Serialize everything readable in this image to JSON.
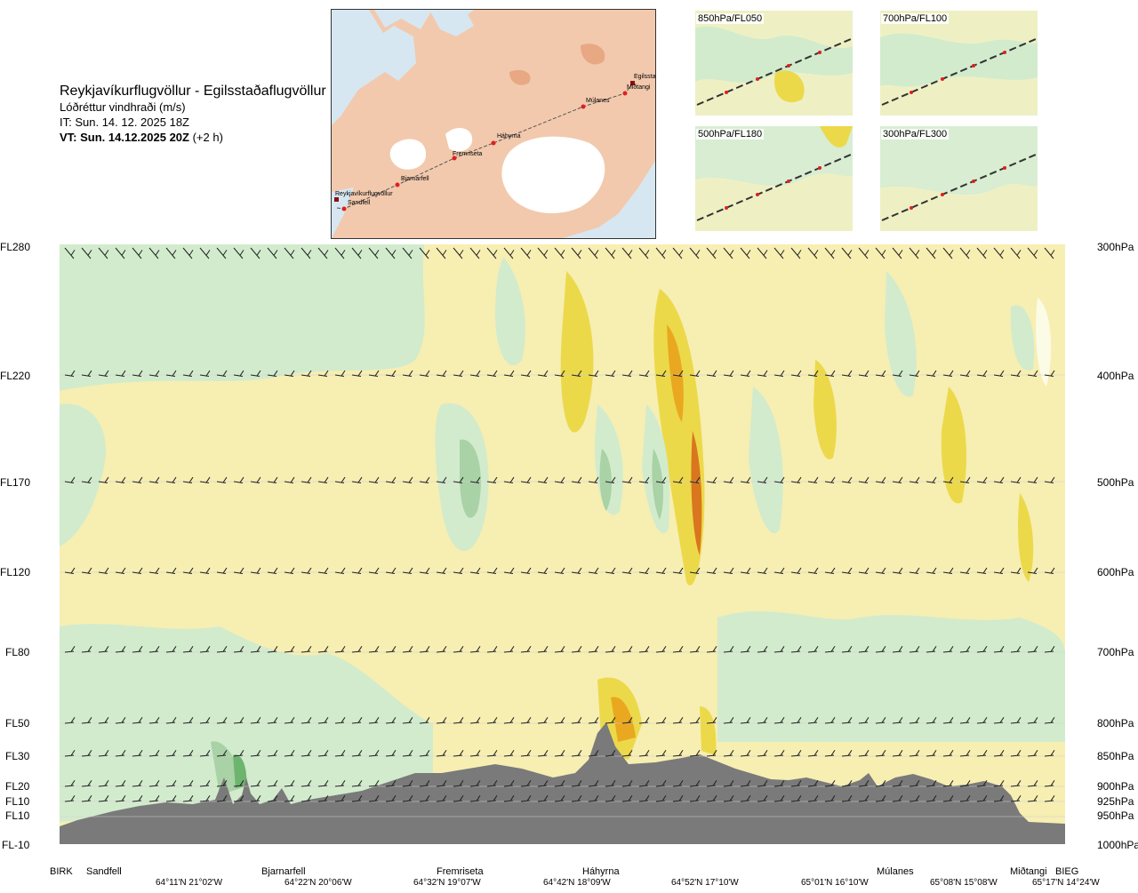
{
  "header": {
    "title": "Reykjavíkurflugvöllur - Egilsstaðaflugvöllur",
    "subtitle": "Lóðréttur vindhraði (m/s)",
    "it": "IT: Sun. 14. 12. 2025 18Z",
    "vt_bold": "VT: Sun. 14.12.2025 20Z",
    "vt_suffix": " (+2 h)"
  },
  "route_map": {
    "places": [
      "Reykjavíkurflugvöllur",
      "Sandfell",
      "Bjarnarfell",
      "Fremriseta",
      "Háhyrna",
      "Múlanes",
      "Miðtangi",
      "Egilsstaðir"
    ]
  },
  "level_maps": [
    {
      "label": "850hPa/FL050"
    },
    {
      "label": "700hPa/FL100"
    },
    {
      "label": "500hPa/FL180"
    },
    {
      "label": "300hPa/FL300"
    }
  ],
  "flight_levels": [
    "FL280",
    "FL220",
    "FL170",
    "FL120",
    "FL80",
    "FL50",
    "FL30",
    "FL20",
    "FL10",
    "FL10",
    "FL-10"
  ],
  "pressure_levels": [
    "300hPa",
    "400hPa",
    "500hPa",
    "600hPa",
    "700hPa",
    "800hPa",
    "850hPa",
    "900hPa",
    "925hPa",
    "950hPa",
    "1000hPa"
  ],
  "stations": [
    "BIRK",
    "Sandfell",
    "Bjarnarfell",
    "Fremriseta",
    "Háhyrna",
    "Múlanes",
    "Miðtangi",
    "BIEG"
  ],
  "coordinates": [
    "64°11'N 21°02'W",
    "64°22'N 20°06'W",
    "64°32'N 19°07'W",
    "64°42'N 18°09'W",
    "64°52'N 17°10'W",
    "65°01'N 16°10'W",
    "65°08'N 15°08'W",
    "65°17'N 14°24'W"
  ],
  "colors": {
    "up_weak": "#f7eeb2",
    "up_mod": "#ecd94a",
    "up_strong": "#e9a820",
    "up_max": "#d9761e",
    "down_weak": "#d2ebcd",
    "down_mod": "#a9d2a6",
    "down_strong": "#6db56e",
    "neutral": "#fbfbe6",
    "terrain": "#7a7a7a"
  }
}
